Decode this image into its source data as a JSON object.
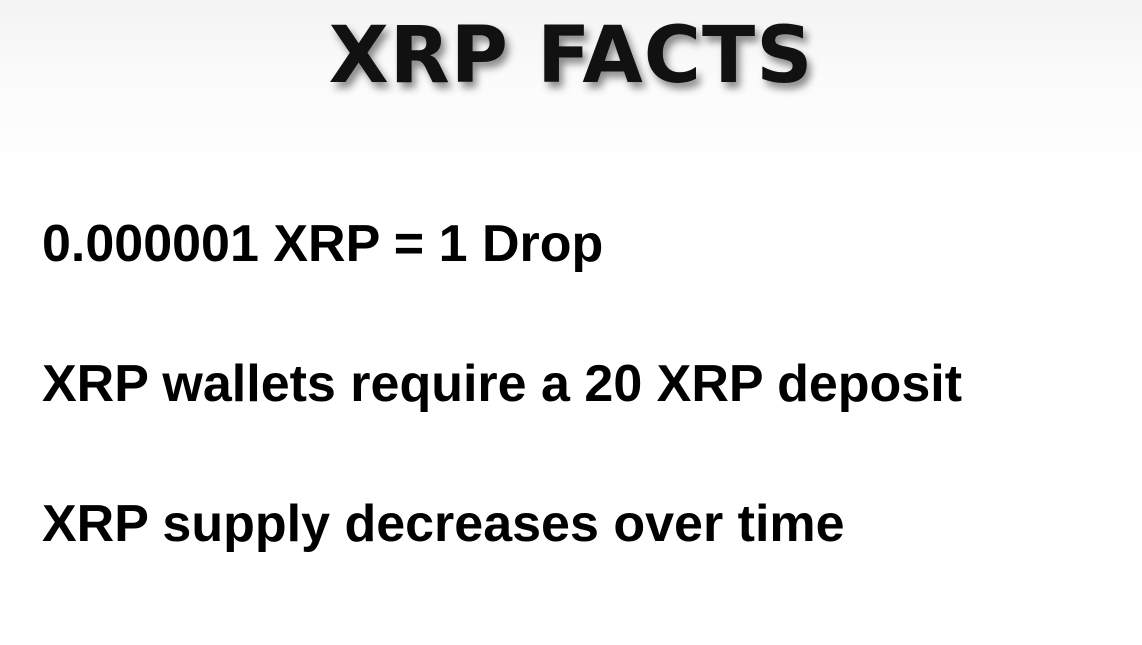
{
  "slide": {
    "title": "XRP FACTS",
    "facts": [
      "0.000001 XRP = 1 Drop",
      "XRP wallets require a 20 XRP deposit",
      "XRP supply decreases over time"
    ]
  }
}
